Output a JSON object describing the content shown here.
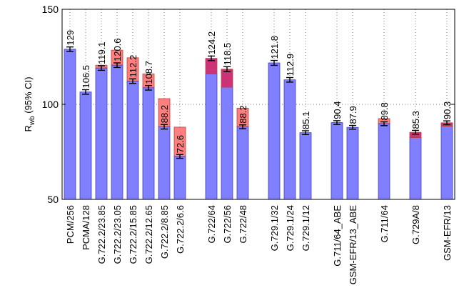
{
  "chart_data": {
    "type": "bar",
    "ylabel_main": "R",
    "ylabel_sub": "wb",
    "ylabel_tail": " (95% CI)",
    "ylim": [
      50,
      150
    ],
    "yticks": [
      50,
      100,
      150
    ],
    "grid": true,
    "colors": {
      "base": "#7f7fff",
      "base_stroke": "#3f3fbf",
      "red": "#ff7f7f",
      "red_stroke": "#bf3f3f",
      "dark": "#cc3377"
    },
    "categories": [
      {
        "label": "PCM/256",
        "value": 129,
        "value_label": "129",
        "ci": 1.2
      },
      {
        "label": "PCMA/128",
        "value": 106.5,
        "value_label": "106.5",
        "ci": 1.2
      },
      {
        "label": "G.722.2/23.85",
        "value": 119.1,
        "value_label": "119.1",
        "ci": 1.2,
        "top": 120.6,
        "top_color": "red"
      },
      {
        "label": "G.722.2/23.05",
        "value": 120.6,
        "value_label": "120.6",
        "ci": 1.2,
        "top": 128.5,
        "top_color": "red"
      },
      {
        "label": "G.722.2/15.85",
        "value": 112.2,
        "value_label": "112.2",
        "ci": 1.2,
        "top": 124.5,
        "top_color": "red"
      },
      {
        "label": "G.722.2/12.65",
        "value": 108.7,
        "value_label": "108.7",
        "ci": 1.2,
        "top": 116,
        "top_color": "red"
      },
      {
        "label": "G.722.2/8.85",
        "value": 88.2,
        "value_label": "88.2",
        "ci": 1.2,
        "top": 103,
        "top_color": "red"
      },
      {
        "label": "G.722.2/6.6",
        "value": 72.6,
        "value_label": "72.6",
        "ci": 1.0,
        "top": 88,
        "top_color": "red"
      },
      {
        "label": "",
        "value": null
      },
      {
        "label": "G.722/64",
        "value": 124.2,
        "value_label": "124.2",
        "ci": 1.2,
        "base": 116,
        "top_color": "dark"
      },
      {
        "label": "G.722/56",
        "value": 118.5,
        "value_label": "118.5",
        "ci": 1.3,
        "base": 109,
        "top_color": "dark"
      },
      {
        "label": "G.722/48",
        "value": 88.2,
        "value_label": "88.2",
        "ci": 1.0,
        "top": 98,
        "top_color": "red"
      },
      {
        "label": "",
        "value": null
      },
      {
        "label": "G.729.1/32",
        "value": 121.8,
        "value_label": "121.8",
        "ci": 1.3
      },
      {
        "label": "G.729.1/24",
        "value": 112.9,
        "value_label": "112.9",
        "ci": 1.2
      },
      {
        "label": "G.729.1/12",
        "value": 85.1,
        "value_label": "85.1",
        "ci": 1.0
      },
      {
        "label": "",
        "value": null
      },
      {
        "label": "G.711/64_ABE",
        "value": 90.4,
        "value_label": "90.4",
        "ci": 1.0
      },
      {
        "label": "GSM-EFR/13_ABE",
        "value": 87.9,
        "value_label": "87.9",
        "ci": 1.0
      },
      {
        "label": "",
        "value": null
      },
      {
        "label": "G.711/64",
        "value": 89.8,
        "value_label": "89.8",
        "ci": 1.0,
        "top": 92.5,
        "top_color": "red"
      },
      {
        "label": "",
        "value": null
      },
      {
        "label": "G.729A/8",
        "value": 85.3,
        "value_label": "85.3",
        "ci": 1.0,
        "base": 82.5,
        "top_color": "dark"
      },
      {
        "label": "",
        "value": null
      },
      {
        "label": "GSM-EFR/13",
        "value": 90.3,
        "value_label": "90.3",
        "ci": 1.0,
        "base": 88.5,
        "top_color": "dark"
      }
    ]
  }
}
